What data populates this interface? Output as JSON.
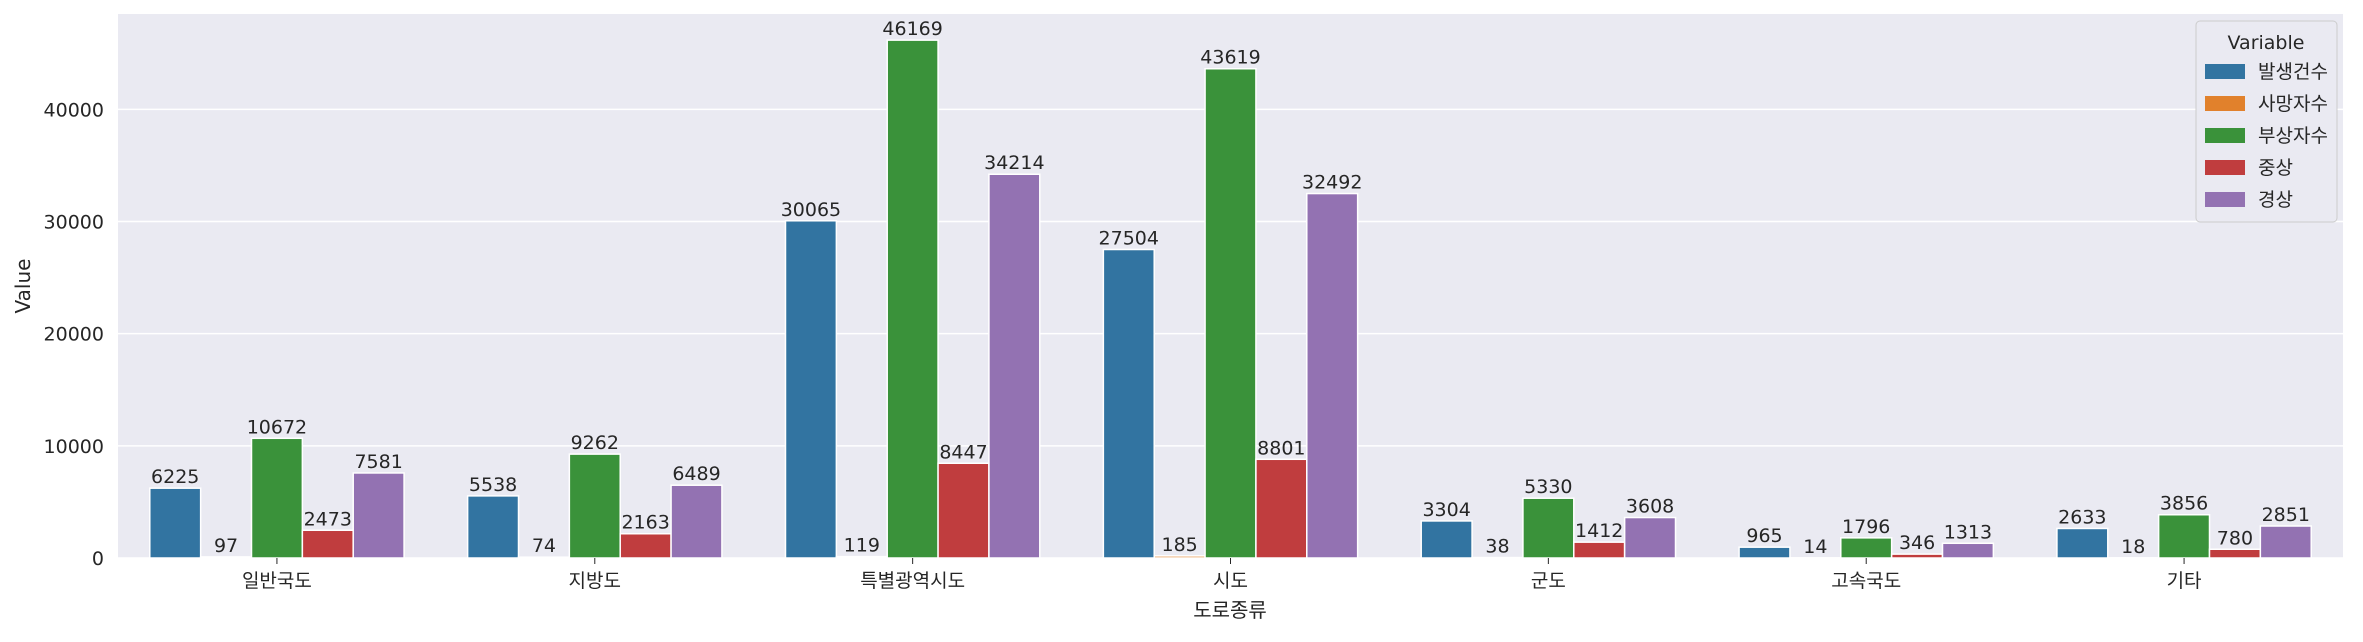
{
  "chart_data": {
    "type": "bar",
    "xlabel": "도로종류",
    "ylabel": "Value",
    "ylim": [
      0,
      48500
    ],
    "yticks": [
      0,
      10000,
      20000,
      30000,
      40000
    ],
    "grid": true,
    "legend_title": "Variable",
    "legend_position": "top-right",
    "categories": [
      "일반국도",
      "지방도",
      "특별광역시도",
      "시도",
      "군도",
      "고속국도",
      "기타"
    ],
    "series": [
      {
        "name": "발생건수",
        "color": "#3274a1",
        "values": [
          6225,
          5538,
          30065,
          27504,
          3304,
          965,
          2633
        ]
      },
      {
        "name": "사망자수",
        "color": "#e1812c",
        "values": [
          97,
          74,
          119,
          185,
          38,
          14,
          18
        ]
      },
      {
        "name": "부상자수",
        "color": "#3a923a",
        "values": [
          10672,
          9262,
          46169,
          43619,
          5330,
          1796,
          3856
        ]
      },
      {
        "name": "중상",
        "color": "#c03d3e",
        "values": [
          2473,
          2163,
          8447,
          8801,
          1412,
          346,
          780
        ]
      },
      {
        "name": "경상",
        "color": "#9372b2",
        "values": [
          7581,
          6489,
          34214,
          32492,
          3608,
          1313,
          2851
        ]
      }
    ]
  }
}
